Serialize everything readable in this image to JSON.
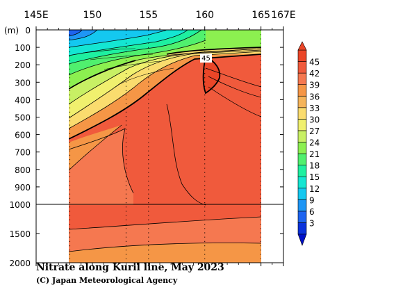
{
  "chart_data": {
    "type": "heatmap",
    "title": "Nitrate along Kuril line, May 2023",
    "credit": "(C) Japan Meteorological Agency",
    "x_unit_suffix": "E",
    "x_ticks": [
      145,
      150,
      155,
      160,
      165,
      167
    ],
    "xlim": [
      145,
      167
    ],
    "y_unit_label": "(m)",
    "y_ticks_upper": [
      0,
      100,
      200,
      300,
      400,
      500,
      600,
      700,
      800,
      900,
      1000
    ],
    "y_ticks_lower": [
      1500,
      2000
    ],
    "ylim": [
      0,
      2000
    ],
    "y_axis_break": 1000,
    "data_extent_lon": [
      148,
      165
    ],
    "station_lons": [
      148,
      153,
      155,
      160,
      165
    ],
    "contour_label": "45",
    "colorbar": {
      "levels": [
        3,
        6,
        9,
        12,
        15,
        18,
        21,
        24,
        27,
        30,
        33,
        36,
        39,
        42,
        45
      ],
      "colors": [
        "#0a32dc",
        "#1e64f0",
        "#1e96f5",
        "#14c8f0",
        "#14e6d2",
        "#1ef0a0",
        "#50f06e",
        "#8cf050",
        "#c8f064",
        "#f0f06e",
        "#fadc6e",
        "#f5b45a",
        "#f59646",
        "#f57850",
        "#f05a3c",
        "#eb4628"
      ]
    }
  }
}
